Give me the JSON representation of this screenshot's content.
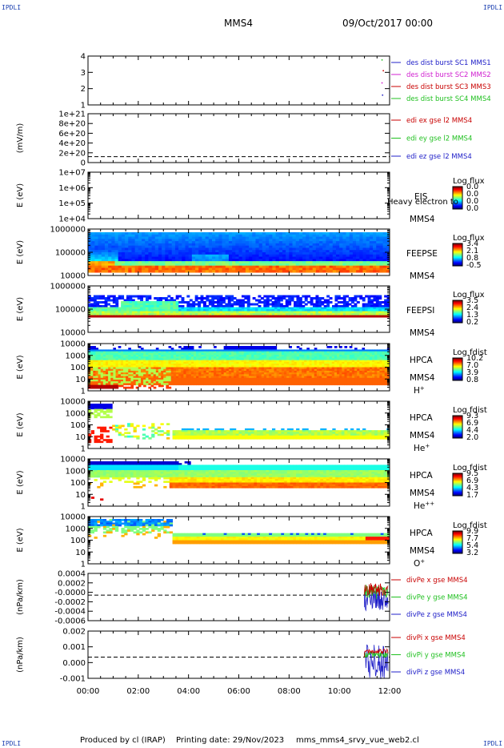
{
  "header": {
    "corner_label": "IPDLI",
    "spacecraft": "MMS4",
    "date": "09/Oct/2017 00:00"
  },
  "footer": {
    "produced_by": "Produced by cl (IRAP)",
    "printing_date": "Printing date: 29/Nov/2023",
    "file": "mms_mms4_srvy_vue_web2.cl"
  },
  "chart_data": {
    "type": "multi-panel time series / spectrogram",
    "x_tick_labels": [
      "00:00",
      "02:00",
      "04:00",
      "06:00",
      "08:00",
      "10:00",
      "12:00"
    ],
    "x_range_hours": [
      0,
      12
    ],
    "panels": [
      {
        "id": "burst",
        "type": "line",
        "y_ticks": [
          "4",
          "3",
          "2",
          "1"
        ],
        "ylabel": "",
        "legend": [
          {
            "text": "des dist burst SC1 MMS1",
            "color": "#2020c8"
          },
          {
            "text": "des dist burst SC2 MMS2",
            "color": "#d020d0"
          },
          {
            "text": "des dist burst SC3 MMS3",
            "color": "#c80000"
          },
          {
            "text": "des dist burst SC4 MMS4",
            "color": "#20c020"
          }
        ]
      },
      {
        "id": "edi",
        "type": "line",
        "ylabel": "(mV/m)",
        "y_ticks": [
          "1e+21",
          "8e+20",
          "6e+20",
          "4e+20",
          "2e+20",
          "0"
        ],
        "legend": [
          {
            "text": "edi ex gse l2 MMS4",
            "color": "#c80000"
          },
          {
            "text": "edi ey gse l2 MMS4",
            "color": "#20c020"
          },
          {
            "text": "edi ez gse l2 MMS4",
            "color": "#2020c8"
          }
        ]
      },
      {
        "id": "eis",
        "type": "heatmap",
        "ylabel": "E (eV)",
        "y_ticks": [
          "1e+07",
          "1e+06",
          "1e+05",
          "1e+04"
        ],
        "instrument": "EIS",
        "overlay_text": "Heavy electron to",
        "spacecraft": "MMS4",
        "species": "",
        "cbar_title": "Log flux",
        "cbar_ticks": [
          "0.0",
          "0.0",
          "0.0",
          "0.0"
        ]
      },
      {
        "id": "feepse",
        "type": "heatmap",
        "ylabel": "E (eV)",
        "y_ticks": [
          "1000000",
          "100000",
          "10000"
        ],
        "instrument": "FEEPSE",
        "spacecraft": "MMS4",
        "species": "",
        "cbar_title": "Log flux",
        "cbar_ticks": [
          "3.4",
          "2.1",
          "0.8",
          "-0.5"
        ]
      },
      {
        "id": "feepsi",
        "type": "heatmap",
        "ylabel": "E (eV)",
        "y_ticks": [
          "1000000",
          "100000",
          "10000"
        ],
        "instrument": "FEEPSI",
        "spacecraft": "MMS4",
        "species": "",
        "cbar_title": "Log flux",
        "cbar_ticks": [
          "3.5",
          "2.4",
          "1.3",
          "0.2"
        ]
      },
      {
        "id": "hpca_h",
        "type": "heatmap",
        "ylabel": "E (eV)",
        "y_ticks": [
          "10000",
          "1000",
          "100",
          "10",
          "1"
        ],
        "instrument": "HPCA",
        "spacecraft": "MMS4",
        "species": "H",
        "species_charge": "+",
        "cbar_title": "Log fdist",
        "cbar_ticks": [
          "10.2",
          "7.0",
          "3.9",
          "0.8"
        ]
      },
      {
        "id": "hpca_he1",
        "type": "heatmap",
        "ylabel": "E (eV)",
        "y_ticks": [
          "10000",
          "1000",
          "100",
          "10",
          "1"
        ],
        "instrument": "HPCA",
        "spacecraft": "MMS4",
        "species": "He",
        "species_charge": "+",
        "cbar_title": "Log fdist",
        "cbar_ticks": [
          "9.3",
          "6.9",
          "4.4",
          "2.0"
        ]
      },
      {
        "id": "hpca_he2",
        "type": "heatmap",
        "ylabel": "E (eV)",
        "y_ticks": [
          "10000",
          "1000",
          "100",
          "10",
          "1"
        ],
        "instrument": "HPCA",
        "spacecraft": "MMS4",
        "species": "He",
        "species_charge": "++",
        "cbar_title": "Log fdist",
        "cbar_ticks": [
          "9.5",
          "6.9",
          "4.3",
          "1.7"
        ]
      },
      {
        "id": "hpca_o",
        "type": "heatmap",
        "ylabel": "E (eV)",
        "y_ticks": [
          "10000",
          "1000",
          "100",
          "10",
          "1"
        ],
        "instrument": "HPCA",
        "spacecraft": "MMS4",
        "species": "O",
        "species_charge": "+",
        "cbar_title": "Log fdist",
        "cbar_ticks": [
          "9.9",
          "7.7",
          "5.4",
          "3.2"
        ]
      },
      {
        "id": "divpe",
        "type": "line",
        "ylabel": "(nPa/km)",
        "y_ticks": [
          "0.0004",
          "0.0002",
          "-0.0000",
          "-0.0002",
          "-0.0004",
          "-0.0006"
        ],
        "legend": [
          {
            "text": "divPe x gse MMS4",
            "color": "#c80000"
          },
          {
            "text": "divPe y gse MMS4",
            "color": "#20c020"
          },
          {
            "text": "divPe z gse MMS4",
            "color": "#2020c8"
          }
        ]
      },
      {
        "id": "divpi",
        "type": "line",
        "ylabel": "(nPa/km)",
        "y_ticks": [
          "0.002",
          "0.001",
          "0.000",
          "-0.001"
        ],
        "legend": [
          {
            "text": "divPi x gse MMS4",
            "color": "#c80000"
          },
          {
            "text": "divPi y gse MMS4",
            "color": "#20c020"
          },
          {
            "text": "divPi z gse MMS4",
            "color": "#2020c8"
          }
        ]
      }
    ]
  }
}
